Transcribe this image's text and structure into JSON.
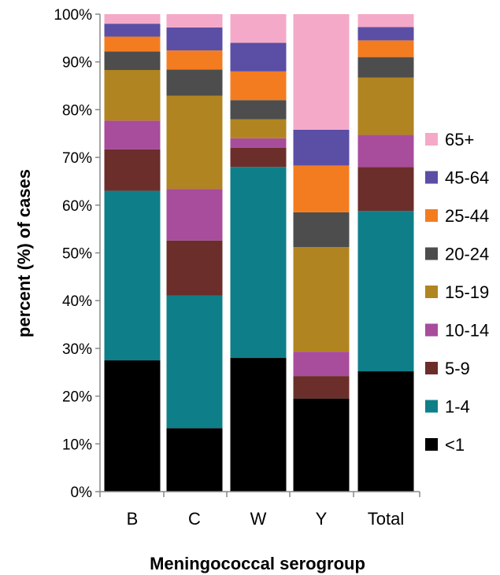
{
  "chart_data": {
    "type": "bar",
    "stacked": true,
    "title": "",
    "xlabel": "Meningococcal serogroup",
    "ylabel": "percent (%) of cases",
    "ylim": [
      0,
      100
    ],
    "y_ticks": [
      "0%",
      "10%",
      "20%",
      "30%",
      "40%",
      "50%",
      "60%",
      "70%",
      "80%",
      "90%",
      "100%"
    ],
    "categories": [
      "B",
      "C",
      "W",
      "Y",
      "Total"
    ],
    "legend_position": "right",
    "series": [
      {
        "name": "<1",
        "color": "#000000",
        "values": [
          27.5,
          13.3,
          28.0,
          19.5,
          25.2
        ]
      },
      {
        "name": "1-4",
        "color": "#0e7f88",
        "values": [
          35.5,
          27.8,
          40.0,
          0.0,
          33.6
        ]
      },
      {
        "name": "5-9",
        "color": "#6b2e2a",
        "values": [
          8.7,
          11.5,
          4.0,
          4.7,
          9.2
        ]
      },
      {
        "name": "10-14",
        "color": "#a84c9c",
        "values": [
          6.0,
          10.8,
          2.0,
          5.1,
          6.7
        ]
      },
      {
        "name": "15-19",
        "color": "#b08420",
        "values": [
          10.6,
          19.5,
          4.0,
          21.9,
          12.0
        ]
      },
      {
        "name": "20-24",
        "color": "#4d4d4d",
        "values": [
          3.9,
          5.5,
          4.0,
          7.3,
          4.3
        ]
      },
      {
        "name": "25-44",
        "color": "#f47c20",
        "values": [
          3.1,
          4.0,
          6.0,
          9.8,
          3.5
        ]
      },
      {
        "name": "45-64",
        "color": "#5b4ea5",
        "values": [
          2.7,
          4.8,
          6.0,
          7.5,
          2.8
        ]
      },
      {
        "name": "65+",
        "color": "#f4a9c8",
        "values": [
          2.0,
          2.8,
          6.0,
          24.2,
          2.7
        ]
      }
    ]
  }
}
